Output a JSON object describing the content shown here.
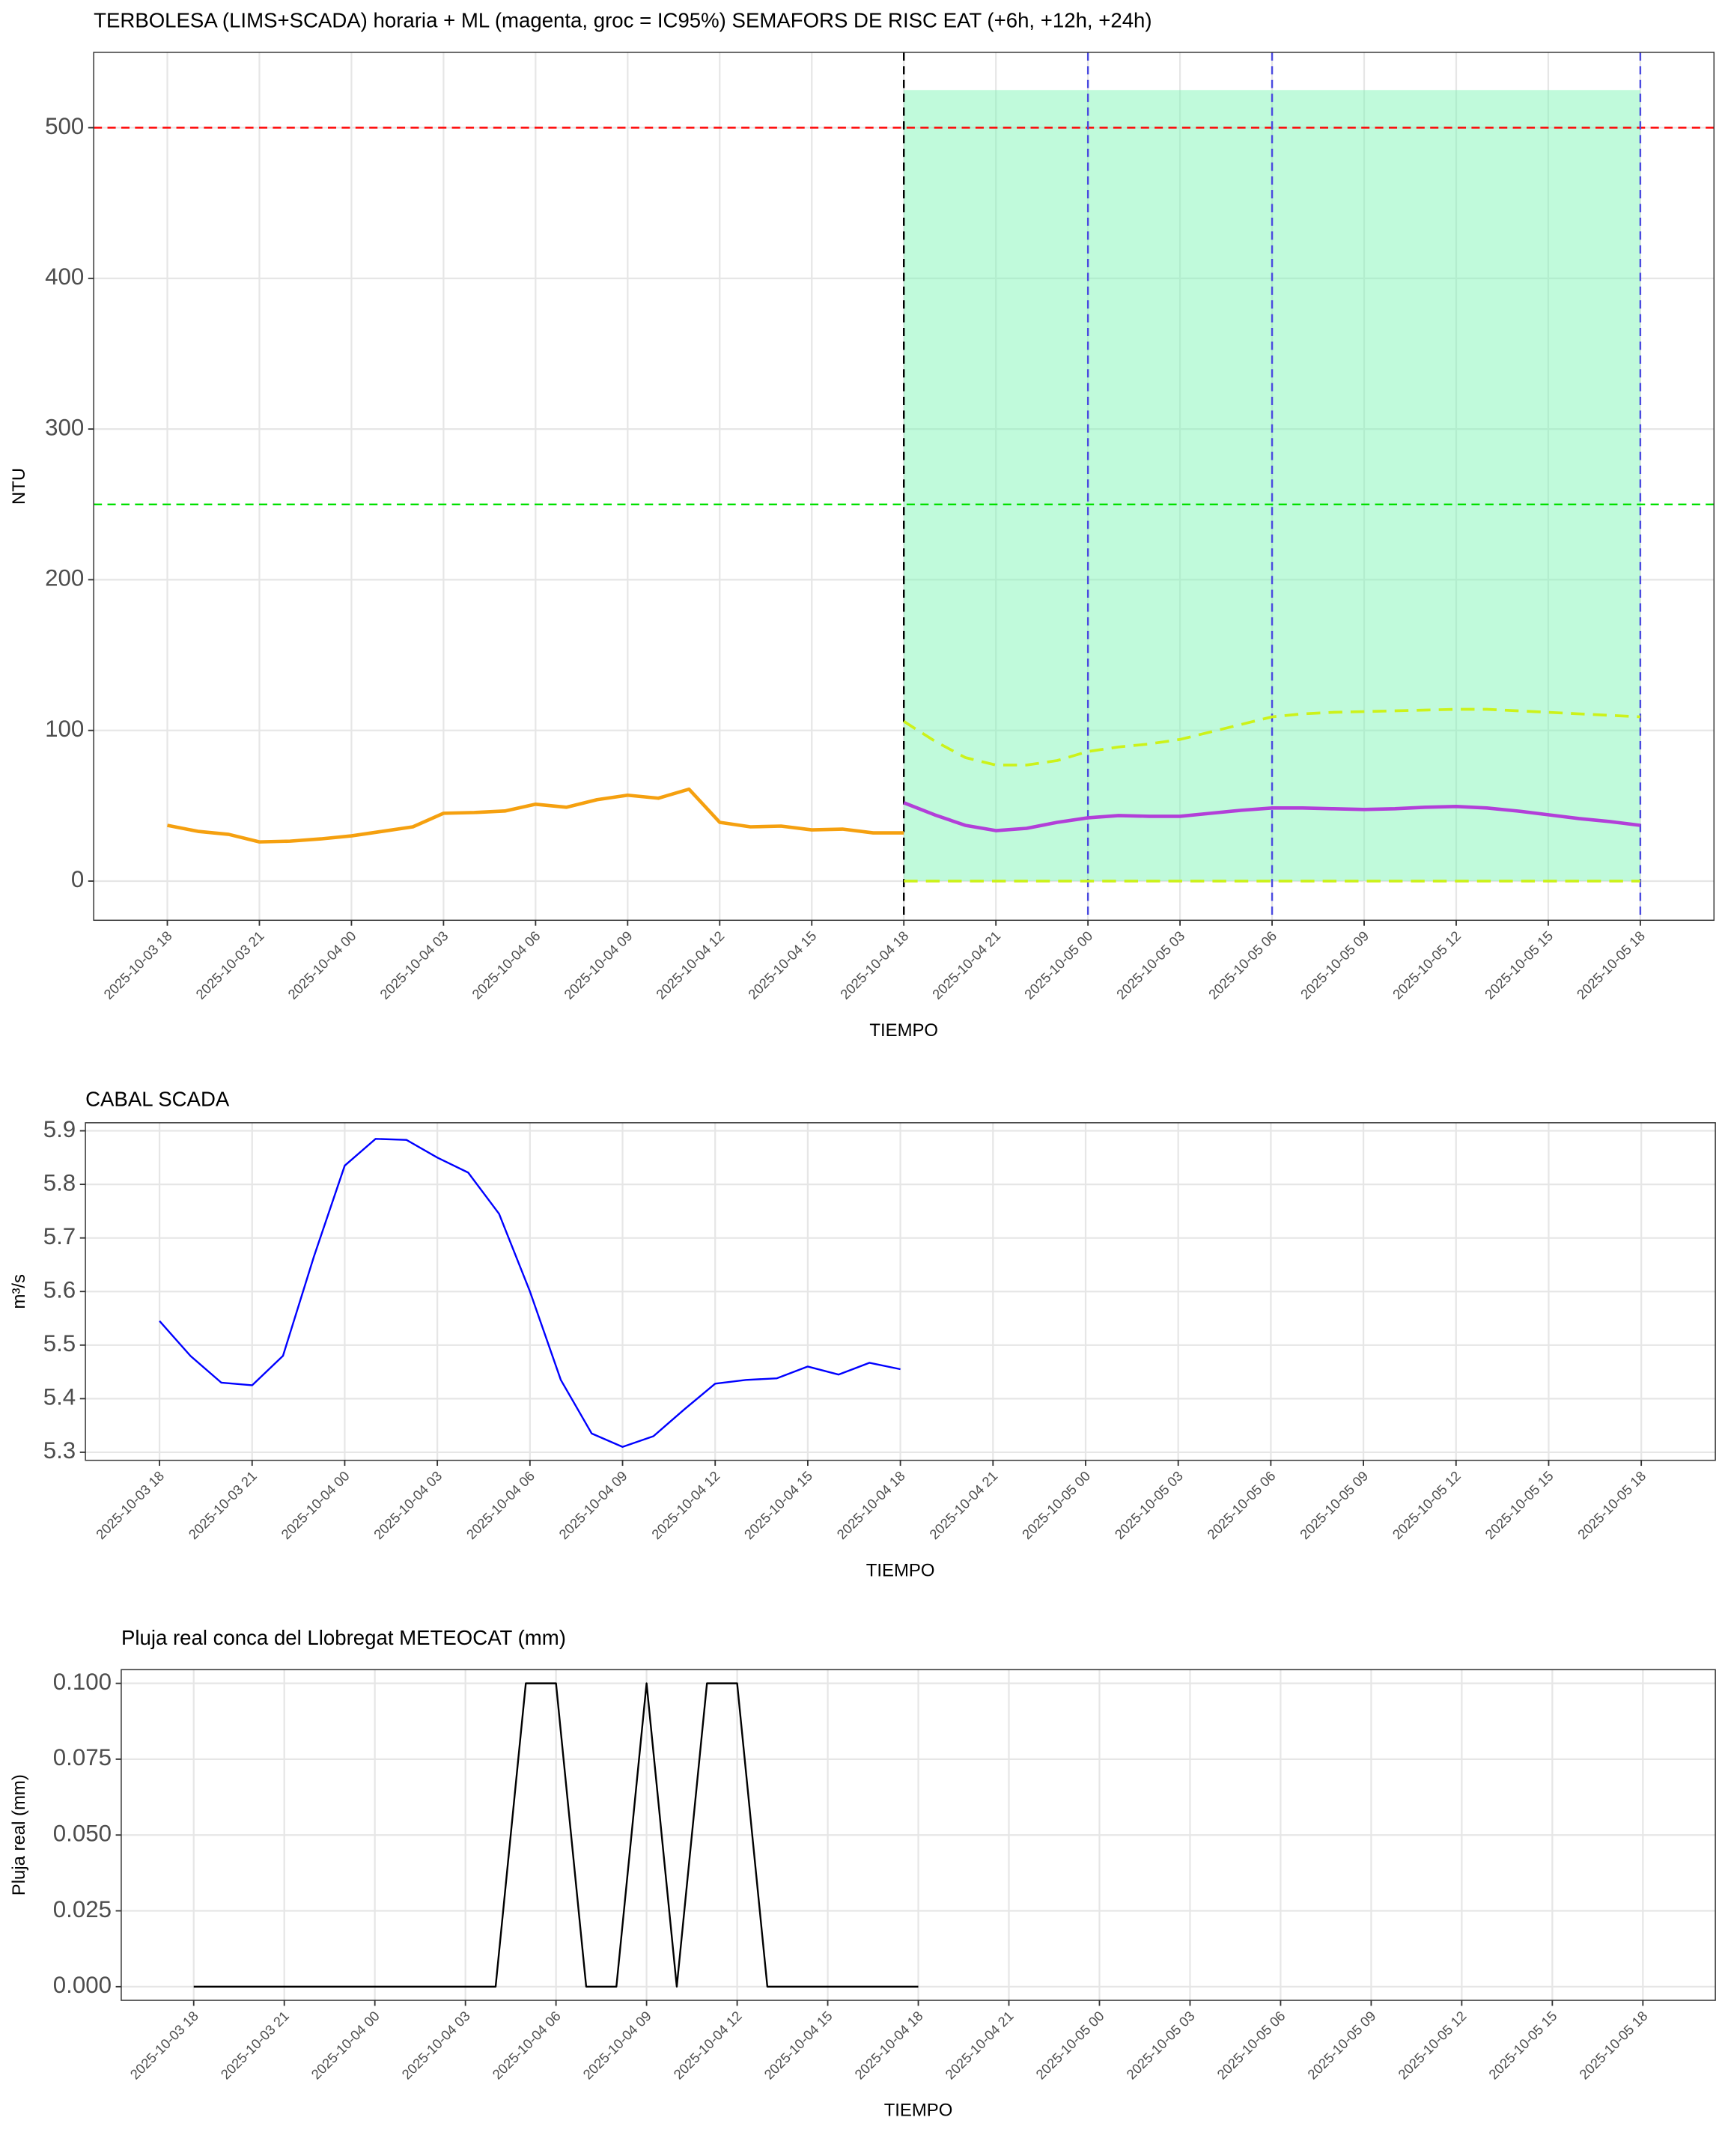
{
  "chart_data": [
    {
      "type": "line",
      "title": "TERBOLESA (LIMS+SCADA) horaria + ML (magenta, groc = IC95%) SEMAFORS DE RISC EAT (+6h, +12h, +24h)",
      "x_label": "TIEMPO",
      "y_label": "NTU",
      "xlim": [
        "2025-10-03 15:36",
        "2025-10-05 20:24"
      ],
      "xticks": [
        "2025-10-03 18",
        "2025-10-03 21",
        "2025-10-04 00",
        "2025-10-04 03",
        "2025-10-04 06",
        "2025-10-04 09",
        "2025-10-04 12",
        "2025-10-04 15",
        "2025-10-04 18",
        "2025-10-04 21",
        "2025-10-05 00",
        "2025-10-05 03",
        "2025-10-05 06",
        "2025-10-05 09",
        "2025-10-05 12",
        "2025-10-05 15",
        "2025-10-05 18"
      ],
      "ylim": [
        -26,
        550
      ],
      "yticks": [
        0,
        100,
        200,
        300,
        400,
        500
      ],
      "grid": true,
      "shaded_region": {
        "x": [
          "2025-10-04 18",
          "2025-10-05 18"
        ],
        "y": [
          0,
          525
        ],
        "color": "#7cf5b4"
      },
      "hlines": [
        {
          "value": 500,
          "color": "#ff0000"
        },
        {
          "value": 250,
          "color": "#00e000"
        }
      ],
      "vlines": [
        {
          "x": "2025-10-04 18",
          "color": "#000000"
        },
        {
          "x": "2025-10-05 00",
          "color": "#4a4ae0"
        },
        {
          "x": "2025-10-05 06",
          "color": "#4a4ae0"
        },
        {
          "x": "2025-10-05 18",
          "color": "#4a4ae0"
        }
      ],
      "series": [
        {
          "color": "#f5a00f",
          "width": 2.5,
          "dashed": false,
          "x": [
            "2025-10-03 18",
            "2025-10-03 19",
            "2025-10-03 20",
            "2025-10-03 21",
            "2025-10-03 22",
            "2025-10-03 23",
            "2025-10-04 00",
            "2025-10-04 01",
            "2025-10-04 02",
            "2025-10-04 03",
            "2025-10-04 04",
            "2025-10-04 05",
            "2025-10-04 06",
            "2025-10-04 07",
            "2025-10-04 08",
            "2025-10-04 09",
            "2025-10-04 10",
            "2025-10-04 11",
            "2025-10-04 12",
            "2025-10-04 13",
            "2025-10-04 14",
            "2025-10-04 15",
            "2025-10-04 16",
            "2025-10-04 17",
            "2025-10-04 18"
          ],
          "values": [
            37,
            33,
            31,
            26,
            26.5,
            28,
            30,
            33,
            36,
            45,
            45.5,
            46.5,
            51,
            49,
            54,
            57,
            55,
            61,
            39,
            36,
            36.5,
            34,
            34.5,
            32,
            32
          ]
        },
        {
          "color": "#b23fd8",
          "width": 2.5,
          "dashed": false,
          "x": [
            "2025-10-04 18",
            "2025-10-04 19",
            "2025-10-04 20",
            "2025-10-04 21",
            "2025-10-04 22",
            "2025-10-04 23",
            "2025-10-05 00",
            "2025-10-05 01",
            "2025-10-05 02",
            "2025-10-05 03",
            "2025-10-05 04",
            "2025-10-05 05",
            "2025-10-05 06",
            "2025-10-05 07",
            "2025-10-05 08",
            "2025-10-05 09",
            "2025-10-05 10",
            "2025-10-05 11",
            "2025-10-05 12",
            "2025-10-05 13",
            "2025-10-05 14",
            "2025-10-05 15",
            "2025-10-05 16",
            "2025-10-05 17",
            "2025-10-05 18"
          ],
          "values": [
            52,
            44,
            37,
            33.5,
            35,
            39,
            42,
            43.5,
            43,
            43,
            45,
            47,
            48.5,
            48.5,
            48,
            47.5,
            48,
            49,
            49.5,
            48.5,
            46.5,
            44,
            41.5,
            39.5,
            37
          ]
        },
        {
          "color": "#ccf21a",
          "width": 2,
          "dashed": true,
          "x": [
            "2025-10-04 18",
            "2025-10-04 19",
            "2025-10-04 20",
            "2025-10-04 21",
            "2025-10-04 22",
            "2025-10-04 23",
            "2025-10-05 00",
            "2025-10-05 01",
            "2025-10-05 02",
            "2025-10-05 03",
            "2025-10-05 04",
            "2025-10-05 05",
            "2025-10-05 06",
            "2025-10-05 07",
            "2025-10-05 08",
            "2025-10-05 09",
            "2025-10-05 10",
            "2025-10-05 11",
            "2025-10-05 12",
            "2025-10-05 13",
            "2025-10-05 14",
            "2025-10-05 15",
            "2025-10-05 16",
            "2025-10-05 17",
            "2025-10-05 18"
          ],
          "values": [
            106,
            93,
            82,
            77,
            77,
            80,
            86,
            89,
            91,
            94,
            99,
            104,
            109,
            111,
            112,
            112.5,
            113,
            113.5,
            114,
            114,
            113,
            112,
            111,
            110,
            109
          ]
        },
        {
          "color": "#ccf21a",
          "width": 2,
          "dashed": true,
          "x": [
            "2025-10-04 18",
            "2025-10-04 19",
            "2025-10-04 20",
            "2025-10-04 21",
            "2025-10-04 22",
            "2025-10-04 23",
            "2025-10-05 00",
            "2025-10-05 01",
            "2025-10-05 02",
            "2025-10-05 03",
            "2025-10-05 04",
            "2025-10-05 05",
            "2025-10-05 06",
            "2025-10-05 07",
            "2025-10-05 08",
            "2025-10-05 09",
            "2025-10-05 10",
            "2025-10-05 11",
            "2025-10-05 12",
            "2025-10-05 13",
            "2025-10-05 14",
            "2025-10-05 15",
            "2025-10-05 16",
            "2025-10-05 17",
            "2025-10-05 18"
          ],
          "values": [
            0,
            0,
            0,
            0,
            0,
            0,
            0,
            0,
            0,
            0,
            0,
            0,
            0,
            0,
            0,
            0,
            0,
            0,
            0,
            0,
            0,
            0,
            0,
            0,
            0
          ]
        }
      ]
    },
    {
      "type": "line",
      "title": "CABAL SCADA",
      "x_label": "TIEMPO",
      "y_label": "m³/s",
      "xlim": [
        "2025-10-03 15:36",
        "2025-10-05 20:24"
      ],
      "xticks": [
        "2025-10-03 18",
        "2025-10-03 21",
        "2025-10-04 00",
        "2025-10-04 03",
        "2025-10-04 06",
        "2025-10-04 09",
        "2025-10-04 12",
        "2025-10-04 15",
        "2025-10-04 18",
        "2025-10-04 21",
        "2025-10-05 00",
        "2025-10-05 03",
        "2025-10-05 06",
        "2025-10-05 09",
        "2025-10-05 12",
        "2025-10-05 15",
        "2025-10-05 18"
      ],
      "ylim": [
        5.285,
        5.915
      ],
      "yticks": [
        5.3,
        5.4,
        5.5,
        5.6,
        5.7,
        5.8,
        5.9
      ],
      "grid": true,
      "series": [
        {
          "color": "#0000ff",
          "width": 1.3,
          "dashed": false,
          "x": [
            "2025-10-03 18",
            "2025-10-03 19",
            "2025-10-03 20",
            "2025-10-03 21",
            "2025-10-03 22",
            "2025-10-03 23",
            "2025-10-04 00",
            "2025-10-04 01",
            "2025-10-04 02",
            "2025-10-04 03",
            "2025-10-04 04",
            "2025-10-04 05",
            "2025-10-04 06",
            "2025-10-04 07",
            "2025-10-04 08",
            "2025-10-04 09",
            "2025-10-04 10",
            "2025-10-04 11",
            "2025-10-04 12",
            "2025-10-04 13",
            "2025-10-04 14",
            "2025-10-04 15",
            "2025-10-04 16",
            "2025-10-04 17",
            "2025-10-04 18"
          ],
          "values": [
            5.545,
            5.48,
            5.43,
            5.425,
            5.48,
            5.665,
            5.835,
            5.885,
            5.883,
            5.85,
            5.822,
            5.745,
            5.6,
            5.435,
            5.335,
            5.31,
            5.33,
            5.38,
            5.428,
            5.435,
            5.438,
            5.46,
            5.445,
            5.467,
            5.455
          ]
        }
      ]
    },
    {
      "type": "line",
      "title": "Pluja real conca del Llobregat METEOCAT (mm)",
      "x_label": "TIEMPO",
      "y_label": "Pluja real (mm)",
      "xlim": [
        "2025-10-03 15:36",
        "2025-10-05 20:24"
      ],
      "xticks": [
        "2025-10-03 18",
        "2025-10-03 21",
        "2025-10-04 00",
        "2025-10-04 03",
        "2025-10-04 06",
        "2025-10-04 09",
        "2025-10-04 12",
        "2025-10-04 15",
        "2025-10-04 18",
        "2025-10-04 21",
        "2025-10-05 00",
        "2025-10-05 03",
        "2025-10-05 06",
        "2025-10-05 09",
        "2025-10-05 12",
        "2025-10-05 15",
        "2025-10-05 18"
      ],
      "ylim": [
        -0.0045,
        0.1045
      ],
      "yticks": [
        {
          "value": 0,
          "label": "0.000"
        },
        {
          "value": 0.025,
          "label": "0.025"
        },
        {
          "value": 0.05,
          "label": "0.050"
        },
        {
          "value": 0.075,
          "label": "0.075"
        },
        {
          "value": 0.1,
          "label": "0.100"
        }
      ],
      "grid": true,
      "series": [
        {
          "color": "#000000",
          "width": 1.3,
          "dashed": false,
          "x": [
            "2025-10-03 18",
            "2025-10-03 19",
            "2025-10-03 20",
            "2025-10-03 21",
            "2025-10-03 22",
            "2025-10-03 23",
            "2025-10-04 00",
            "2025-10-04 01",
            "2025-10-04 02",
            "2025-10-04 03",
            "2025-10-04 04",
            "2025-10-04 05",
            "2025-10-04 06",
            "2025-10-04 07",
            "2025-10-04 08",
            "2025-10-04 09",
            "2025-10-04 10",
            "2025-10-04 11",
            "2025-10-04 12",
            "2025-10-04 13",
            "2025-10-04 14",
            "2025-10-04 15",
            "2025-10-04 16",
            "2025-10-04 17",
            "2025-10-04 18"
          ],
          "values": [
            0,
            0,
            0,
            0,
            0,
            0,
            0,
            0,
            0,
            0,
            0,
            0.1,
            0.1,
            0,
            0,
            0.1,
            0,
            0.1,
            0.1,
            0,
            0,
            0,
            0,
            0,
            0
          ]
        }
      ]
    }
  ]
}
